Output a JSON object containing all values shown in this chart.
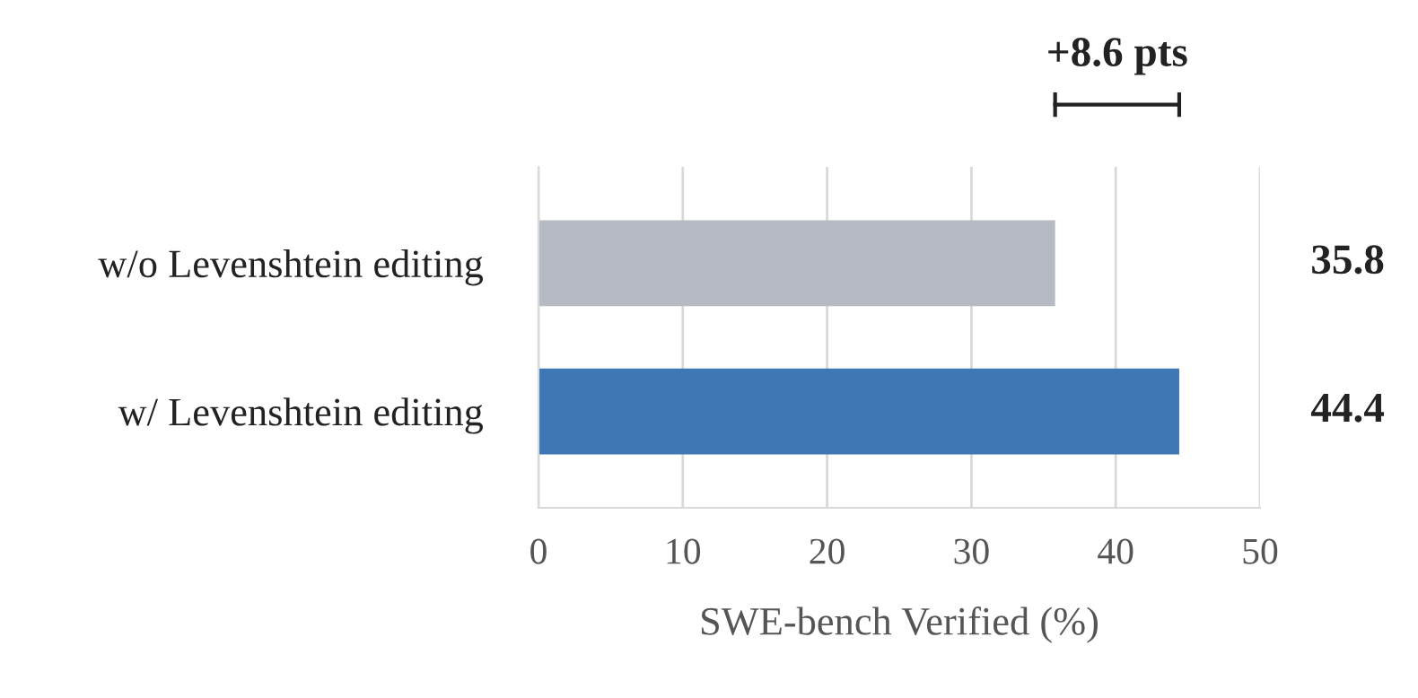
{
  "chart_data": {
    "type": "bar",
    "orientation": "horizontal",
    "xlabel": "SWE-bench Verified (%)",
    "categories": [
      "w/o Levenshtein editing",
      "w/ Levenshtein editing"
    ],
    "values": [
      35.8,
      44.4
    ],
    "colors": [
      "#b6bac2",
      "#3f76b4"
    ],
    "xlim": [
      0,
      50
    ],
    "xticks": [
      0,
      10,
      20,
      30,
      40,
      50
    ],
    "grid": "x",
    "data_labels": true,
    "annotations": [
      "+8.6 pts"
    ]
  }
}
